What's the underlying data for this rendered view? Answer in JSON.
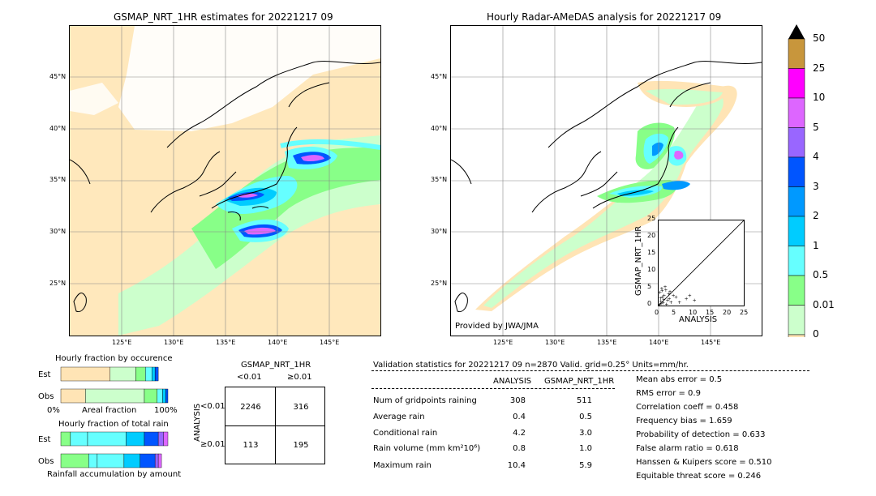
{
  "left_map": {
    "title": "GSMAP_NRT_1HR estimates for 20221217 09",
    "lat_labels": [
      "45°N",
      "40°N",
      "35°N",
      "30°N",
      "25°N"
    ],
    "lon_labels": [
      "125°E",
      "130°E",
      "135°E",
      "140°E",
      "145°E"
    ]
  },
  "right_map": {
    "title": "Hourly Radar-AMeDAS analysis for 20221217 09",
    "lat_labels": [
      "45°N",
      "40°N",
      "35°N",
      "30°N",
      "25°N"
    ],
    "lon_labels": [
      "125°E",
      "130°E",
      "135°E",
      "140°E",
      "145°E"
    ],
    "credit": "Provided by JWA/JMA"
  },
  "colorbar": {
    "ticks": [
      "50",
      "25",
      "10",
      "5",
      "4",
      "3",
      "2",
      "1",
      "0.5",
      "0.01",
      "0"
    ],
    "colors": [
      "#c8963c",
      "#ff00ff",
      "#dd66ff",
      "#9966ff",
      "#0055ff",
      "#0099ff",
      "#00ccff",
      "#66ffff",
      "#88ff88",
      "#ccffcc",
      "#ffe4b5"
    ]
  },
  "chart_data": [
    {
      "type": "scatter",
      "title": "",
      "xlabel": "ANALYSIS",
      "ylabel": "GSMAP_NRT_1HR",
      "xlim": [
        0,
        25
      ],
      "ylim": [
        0,
        25
      ],
      "x_ticks": [
        "0",
        "5",
        "10",
        "15",
        "20",
        "25"
      ],
      "y_ticks": [
        "0",
        "5",
        "10",
        "15",
        "20",
        "25"
      ],
      "points": [
        [
          0.2,
          0.3
        ],
        [
          0.5,
          1.2
        ],
        [
          1.0,
          2.5
        ],
        [
          1.5,
          3.0
        ],
        [
          2.0,
          4.5
        ],
        [
          0.8,
          5.0
        ],
        [
          1.2,
          0.8
        ],
        [
          2.5,
          1.5
        ],
        [
          3.0,
          2.0
        ],
        [
          0.3,
          3.8
        ],
        [
          1.8,
          5.5
        ],
        [
          2.2,
          0.4
        ],
        [
          0.6,
          0.6
        ],
        [
          3.5,
          1.0
        ],
        [
          4.2,
          3.0
        ],
        [
          8.0,
          2.0
        ],
        [
          10.4,
          1.5
        ],
        [
          6.0,
          1.0
        ],
        [
          5.0,
          2.5
        ],
        [
          9.0,
          3.0
        ],
        [
          3.2,
          4.0
        ],
        [
          0.4,
          2.2
        ],
        [
          1.4,
          1.8
        ],
        [
          2.8,
          3.4
        ],
        [
          0.9,
          4.4
        ]
      ]
    },
    {
      "type": "bar",
      "title": "Hourly fraction by occurence",
      "rows": [
        "Est",
        "Obs"
      ],
      "axis_labels": [
        "0%",
        "Areal fraction",
        "100%"
      ],
      "series": [
        {
          "row": "Est",
          "fractions": [
            0.46,
            0.24,
            0.09,
            0.06,
            0.03,
            0.03
          ]
        },
        {
          "row": "Obs",
          "fractions": [
            0.23,
            0.55,
            0.12,
            0.05,
            0.03,
            0.02
          ]
        }
      ]
    },
    {
      "type": "bar",
      "title": "Hourly fraction of total rain",
      "rows": [
        "Est",
        "Obs"
      ],
      "axis_labels": [
        "Rainfall accumulation by amount"
      ],
      "series": [
        {
          "row": "Est",
          "fractions": [
            0.09,
            0.16,
            0.36,
            0.17,
            0.13,
            0.05,
            0.04
          ]
        },
        {
          "row": "Obs",
          "fractions": [
            0.26,
            0.08,
            0.25,
            0.15,
            0.14,
            0.03,
            0.03
          ]
        }
      ]
    },
    {
      "type": "table",
      "title": "GSMAP_NRT_1HR",
      "col_headers": [
        "<0.01",
        "≥0.01"
      ],
      "row_axis": "ANALYSIS",
      "row_headers": [
        "<0.01",
        "≥0.01"
      ],
      "cells": [
        [
          "2246",
          "316"
        ],
        [
          "113",
          "195"
        ]
      ]
    }
  ],
  "validation": {
    "header": "Validation statistics for 20221217 09  n=2870 Valid. grid=0.25° Units=mm/hr.",
    "col_analysis": "ANALYSIS",
    "col_gsmap": "GSMAP_NRT_1HR",
    "rows": [
      {
        "label": "Num of gridpoints raining",
        "analysis": "308",
        "gsmap": "511"
      },
      {
        "label": "Average rain",
        "analysis": "0.4",
        "gsmap": "0.5"
      },
      {
        "label": "Conditional rain",
        "analysis": "4.2",
        "gsmap": "3.0"
      },
      {
        "label": "Rain volume (mm km²10⁶)",
        "analysis": "0.8",
        "gsmap": "1.0"
      },
      {
        "label": "Maximum rain",
        "analysis": "10.4",
        "gsmap": "5.9"
      }
    ],
    "scores": [
      "Mean abs error =    0.5",
      "RMS error =    0.9",
      "Correlation coeff =  0.458",
      "Frequency bias =  1.659",
      "Probability of detection =  0.633",
      "False alarm ratio =  0.618",
      "Hanssen & Kuipers score =  0.510",
      "Equitable threat score =  0.246"
    ]
  }
}
